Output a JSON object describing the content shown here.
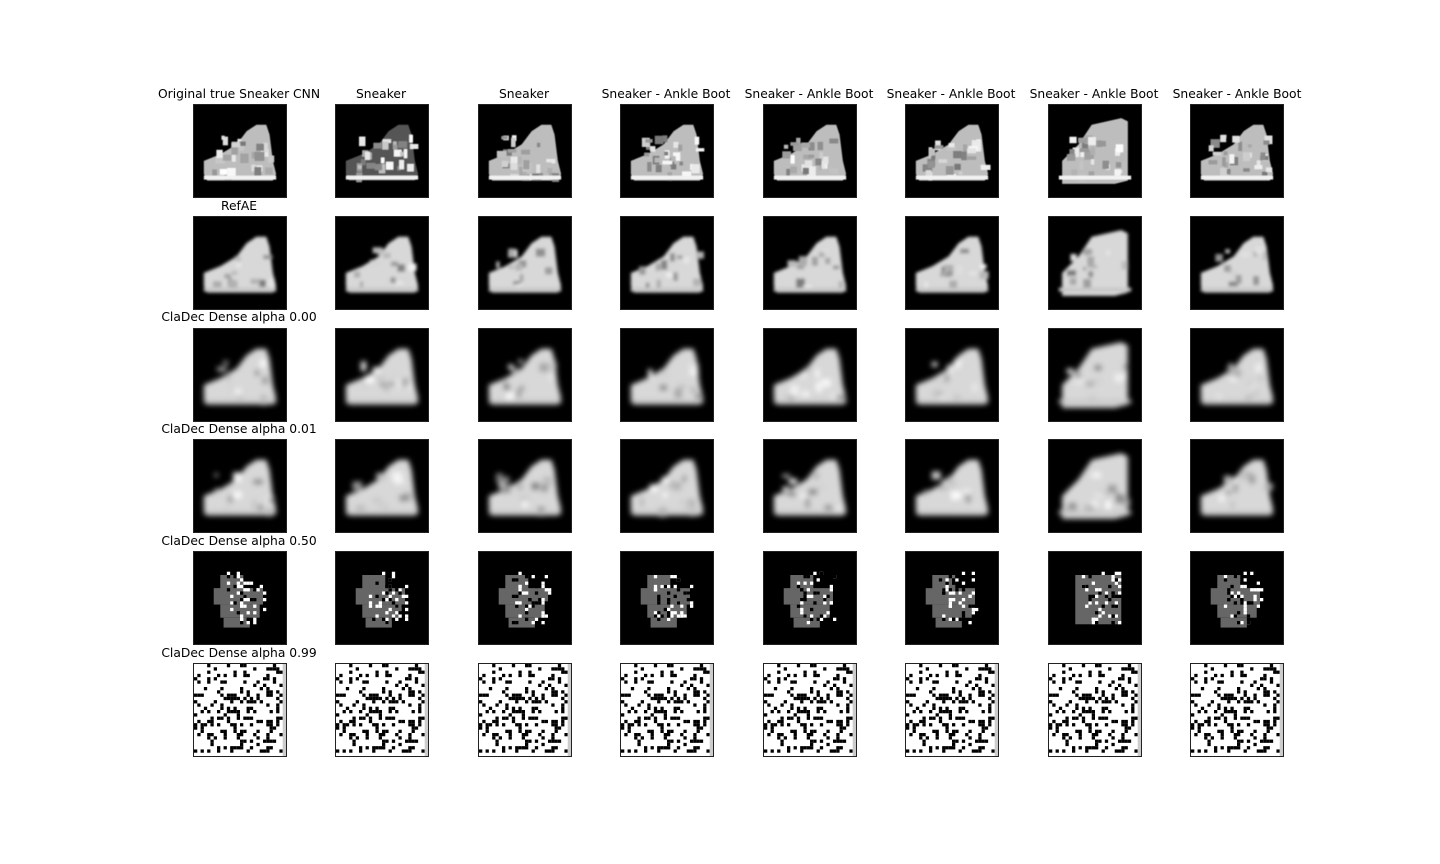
{
  "row_titles": [
    "Original true  Sneaker  CNN",
    "RefAE",
    "ClaDec Dense alpha 0.00",
    "ClaDec Dense alpha 0.01",
    "ClaDec Dense alpha 0.50",
    "ClaDec Dense alpha 0.99"
  ],
  "column_titles": [
    "Sneaker",
    "Sneaker",
    "Sneaker - Ankle Boot",
    "Sneaker - Ankle Boot",
    "Sneaker - Ankle Boot",
    "Sneaker - Ankle Boot",
    "Sneaker - Ankle Boot"
  ]
}
